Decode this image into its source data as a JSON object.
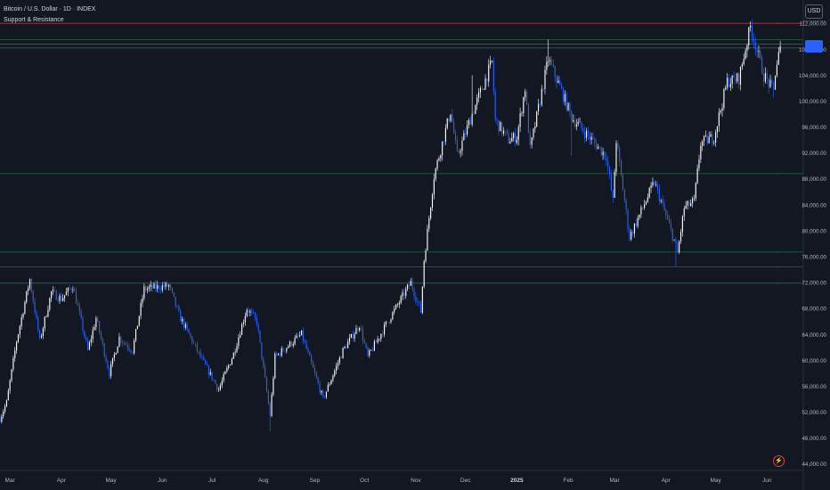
{
  "legend": {
    "symbol": "Bitcoin / U.S. Dollar · 1D · INDEX",
    "indicator": "Support & Resistance"
  },
  "currency": "USD",
  "colors": {
    "background": "#131722",
    "candle_up": "#ffffff",
    "candle_down": "#2962ff",
    "resistance_line": "#b23a48",
    "support_line": "#1f6b43",
    "last_price_tag": "#2962ff"
  },
  "chart_data": {
    "type": "candlestick",
    "interval": "1D",
    "y_axis": {
      "ylim": [
        43000,
        114500
      ],
      "ticks": [
        "112,000.00",
        "108,000.00",
        "104,000.00",
        "100,000.00",
        "96,000.00",
        "92,000.00",
        "88,000.00",
        "84,000.00",
        "80,000.00",
        "76,000.00",
        "72,000.00",
        "68,000.00",
        "64,000.00",
        "60,000.00",
        "56,000.00",
        "52,000.00",
        "48,000.00",
        "44,000.00"
      ]
    },
    "x_axis": {
      "ticks": [
        "Mar",
        "Apr",
        "May",
        "Jun",
        "Jul",
        "Aug",
        "Sep",
        "Oct",
        "Nov",
        "Dec",
        "2025",
        "Feb",
        "Mar",
        "Apr",
        "May",
        "Jun"
      ],
      "tick_dates": [
        "2024-03-01",
        "2024-04-01",
        "2024-05-01",
        "2024-06-01",
        "2024-07-01",
        "2024-08-01",
        "2024-09-01",
        "2024-10-01",
        "2024-11-01",
        "2024-12-01",
        "2025-01-01",
        "2025-02-01",
        "2025-03-01",
        "2025-04-01",
        "2025-05-01",
        "2025-06-01"
      ],
      "range": [
        "2024-02-24",
        "2025-06-10"
      ]
    },
    "price_path": [
      [
        "2024-02-24",
        51000
      ],
      [
        "2024-02-28",
        53500
      ],
      [
        "2024-03-05",
        63000
      ],
      [
        "2024-03-13",
        72500
      ],
      [
        "2024-03-19",
        63000
      ],
      [
        "2024-03-26",
        70500
      ],
      [
        "2024-04-01",
        69500
      ],
      [
        "2024-04-08",
        71500
      ],
      [
        "2024-04-17",
        61500
      ],
      [
        "2024-04-22",
        66500
      ],
      [
        "2024-04-30",
        58000
      ],
      [
        "2024-05-06",
        63500
      ],
      [
        "2024-05-14",
        61500
      ],
      [
        "2024-05-21",
        71000
      ],
      [
        "2024-06-05",
        71500
      ],
      [
        "2024-06-11",
        67000
      ],
      [
        "2024-06-24",
        60500
      ],
      [
        "2024-07-05",
        55500
      ],
      [
        "2024-07-14",
        61000
      ],
      [
        "2024-07-22",
        68000
      ],
      [
        "2024-07-28",
        66000
      ],
      [
        "2024-08-05",
        51500
      ],
      [
        "2024-08-08",
        60500
      ],
      [
        "2024-08-24",
        64000
      ],
      [
        "2024-09-06",
        54000
      ],
      [
        "2024-09-18",
        61500
      ],
      [
        "2024-09-28",
        65500
      ],
      [
        "2024-10-03",
        60500
      ],
      [
        "2024-10-14",
        65500
      ],
      [
        "2024-10-29",
        72000
      ],
      [
        "2024-11-04",
        67500
      ],
      [
        "2024-11-06",
        75500
      ],
      [
        "2024-11-12",
        88500
      ],
      [
        "2024-11-22",
        98500
      ],
      [
        "2024-11-26",
        91500
      ],
      [
        "2024-12-05",
        98000
      ],
      [
        "2024-12-17",
        106000
      ],
      [
        "2024-12-19",
        97000
      ],
      [
        "2024-12-27",
        94000
      ],
      [
        "2025-01-01",
        94500
      ],
      [
        "2025-01-06",
        102000
      ],
      [
        "2025-01-09",
        92500
      ],
      [
        "2025-01-20",
        106500
      ],
      [
        "2025-01-28",
        101500
      ],
      [
        "2025-02-03",
        97500
      ],
      [
        "2025-02-24",
        91500
      ],
      [
        "2025-02-28",
        84500
      ],
      [
        "2025-03-02",
        94000
      ],
      [
        "2025-03-10",
        79000
      ],
      [
        "2025-03-25",
        87500
      ],
      [
        "2025-04-06",
        78500
      ],
      [
        "2025-04-08",
        76500
      ],
      [
        "2025-04-12",
        83500
      ],
      [
        "2025-04-18",
        84500
      ],
      [
        "2025-04-22",
        93500
      ],
      [
        "2025-04-30",
        94500
      ],
      [
        "2025-05-08",
        103000
      ],
      [
        "2025-05-15",
        103500
      ],
      [
        "2025-05-22",
        111500
      ],
      [
        "2025-05-30",
        104000
      ],
      [
        "2025-06-05",
        101500
      ],
      [
        "2025-06-06",
        104500
      ],
      [
        "2025-06-09",
        108500
      ]
    ],
    "extreme_wicks": [
      [
        "2024-08-05",
        49000
      ],
      [
        "2024-12-05",
        104000
      ],
      [
        "2025-01-20",
        109500
      ],
      [
        "2025-02-03",
        91500
      ],
      [
        "2025-04-07",
        74500
      ],
      [
        "2025-05-22",
        111900
      ],
      [
        "2025-06-05",
        100500
      ]
    ],
    "horizontal_levels": [
      {
        "kind": "resistance",
        "price": 112000
      },
      {
        "kind": "support",
        "price": 109500
      },
      {
        "kind": "support",
        "price": 108800
      },
      {
        "kind": "support",
        "price": 108200
      },
      {
        "kind": "support",
        "price": 88800
      },
      {
        "kind": "support",
        "price": 76700
      },
      {
        "kind": "support",
        "price": 74400
      },
      {
        "kind": "support",
        "price": 71900
      }
    ],
    "last_price": 108500,
    "grid": false,
    "legend_position": "top-left"
  }
}
